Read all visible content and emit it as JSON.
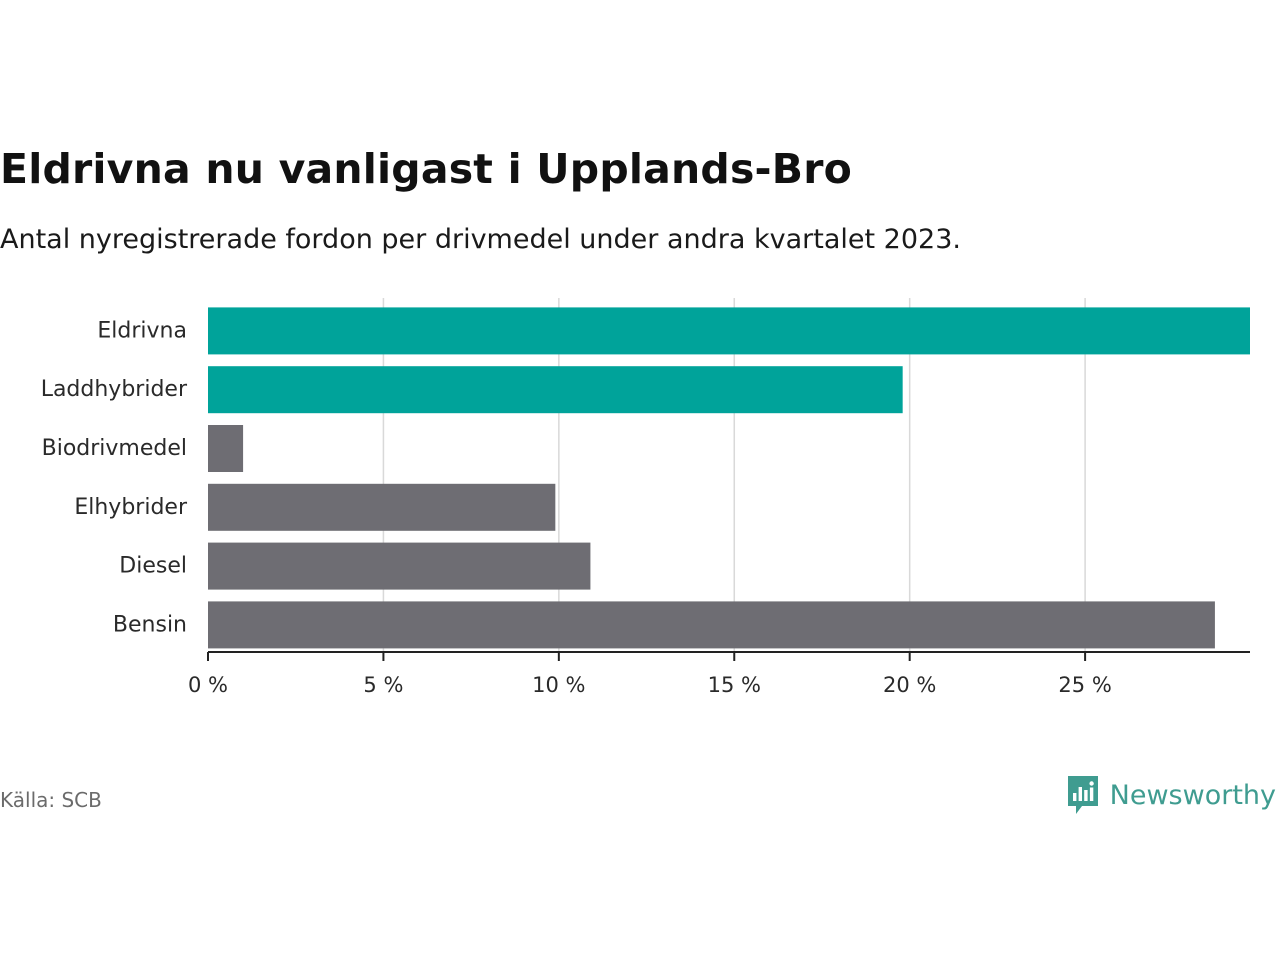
{
  "header": {
    "title": "Eldrivna nu vanligast i Upplands-Bro",
    "subtitle": "Antal nyregistrerade fordon per drivmedel under andra kvartalet 2023."
  },
  "footer": {
    "source": "Källa: SCB",
    "brand": "Newsworthy",
    "brand_icon": "newsworthy-logo-icon"
  },
  "colors": {
    "highlight": "#00a39a",
    "default": "#6e6d73",
    "grid": "#d9d9d9",
    "axis": "#222222",
    "brand": "#3f9c90"
  },
  "chart_data": {
    "type": "bar",
    "orientation": "horizontal",
    "title": "Eldrivna nu vanligast i Upplands-Bro",
    "subtitle": "Antal nyregistrerade fordon per drivmedel under andra kvartalet 2023.",
    "xlabel": "",
    "ylabel": "",
    "xlim": [
      0,
      29.7
    ],
    "x_ticks": [
      0,
      5,
      10,
      15,
      20,
      25
    ],
    "x_tick_labels": [
      "0 %",
      "5 %",
      "10 %",
      "15 %",
      "20 %",
      "25 %"
    ],
    "grid": true,
    "categories": [
      "Eldrivna",
      "Laddhybrider",
      "Biodrivmedel",
      "Elhybrider",
      "Diesel",
      "Bensin"
    ],
    "values": [
      29.7,
      19.8,
      1.0,
      9.9,
      10.9,
      28.7
    ],
    "highlighted": [
      true,
      true,
      false,
      false,
      false,
      false
    ]
  }
}
